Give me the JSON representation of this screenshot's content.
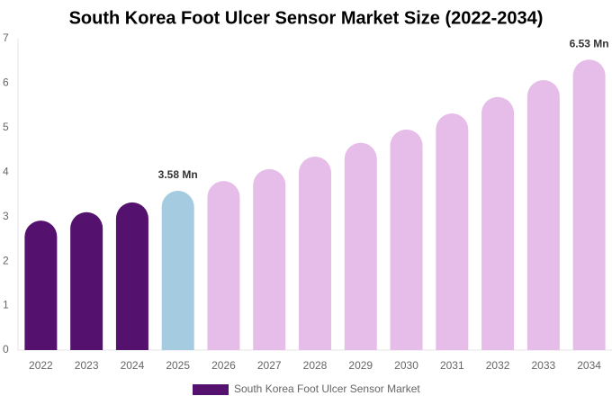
{
  "chart_data": {
    "type": "bar",
    "title": "South Korea Foot Ulcer Sensor Market Size (2022-2034)",
    "categories": [
      "2022",
      "2023",
      "2024",
      "2025",
      "2026",
      "2027",
      "2028",
      "2029",
      "2030",
      "2031",
      "2032",
      "2033",
      "2034"
    ],
    "series": [
      {
        "name": "South Korea Foot Ulcer Sensor Market",
        "color": "#54126e",
        "values": [
          2.91,
          3.1,
          3.32,
          3.58,
          3.8,
          4.07,
          4.35,
          4.66,
          4.96,
          5.32,
          5.69,
          6.07,
          6.53
        ],
        "value_labels": [
          null,
          null,
          null,
          "3.58 Mn",
          null,
          null,
          null,
          null,
          null,
          null,
          null,
          null,
          "6.53 Mn"
        ],
        "colors": [
          "#54126e",
          "#54126e",
          "#54126e",
          "#a4cbe0",
          "#e6bde9",
          "#e6bde9",
          "#e6bde9",
          "#e6bde9",
          "#e6bde9",
          "#e6bde9",
          "#e6bde9",
          "#e6bde9",
          "#e6bde9"
        ]
      }
    ],
    "ylim": [
      0,
      7
    ],
    "yticks": [
      0,
      1,
      2,
      3,
      4,
      5,
      6,
      7
    ],
    "grid": false,
    "legend": "bottom"
  }
}
